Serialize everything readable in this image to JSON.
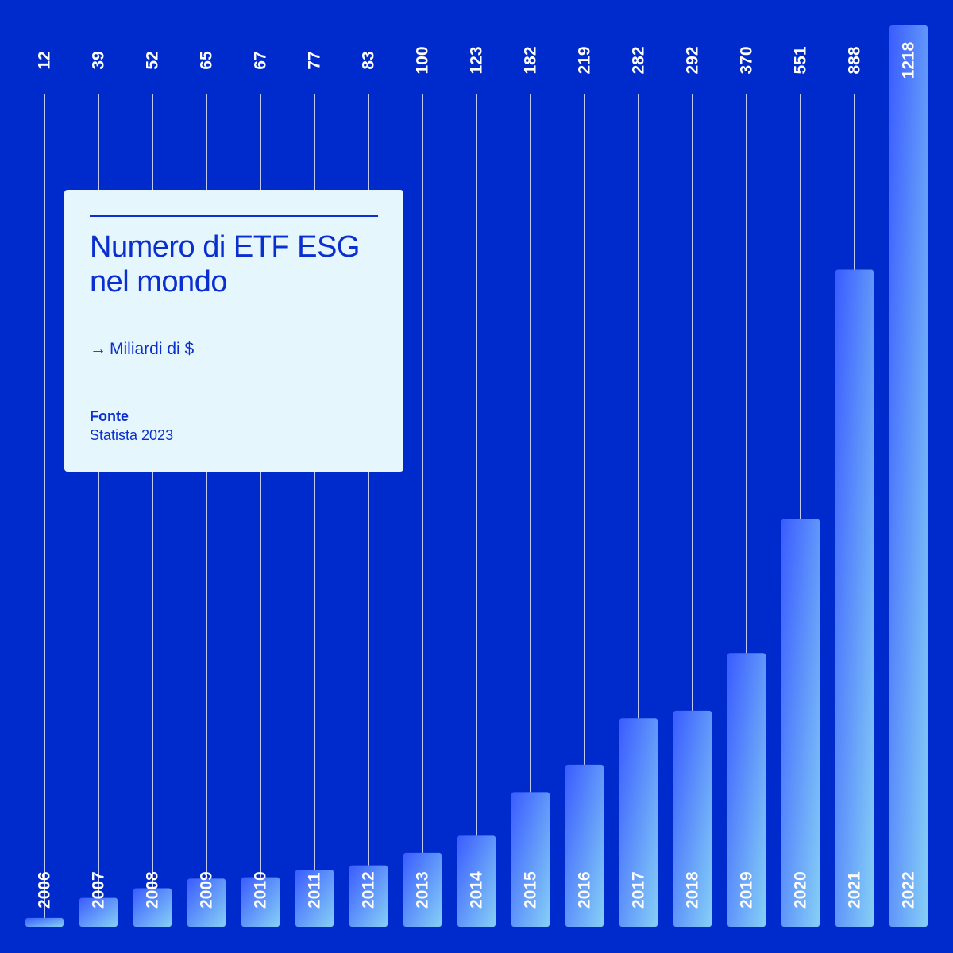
{
  "card": {
    "title": "Numero di ETF ESG nel mondo",
    "unit_arrow": "→",
    "unit": "Miliardi di $",
    "source_label": "Fonte",
    "source": "Statista 2023"
  },
  "colors": {
    "background": "#002bcc",
    "bar_top": "#3a5cff",
    "bar_bottom": "#86cff6",
    "card": "#e6f6fd",
    "card_text": "#0a2fd0"
  },
  "chart_data": {
    "type": "bar",
    "title": "Numero di ETF ESG nel mondo",
    "ylabel": "Miliardi di $",
    "categories": [
      "2006",
      "2007",
      "2008",
      "2009",
      "2010",
      "2011",
      "2012",
      "2013",
      "2014",
      "2015",
      "2016",
      "2017",
      "2018",
      "2019",
      "2020",
      "2021",
      "2022"
    ],
    "values": [
      12,
      39,
      52,
      65,
      67,
      77,
      83,
      100,
      123,
      182,
      219,
      282,
      292,
      370,
      551,
      888,
      1218
    ],
    "ylim": [
      0,
      1218
    ],
    "grid": false,
    "data_labels": "top, rotated",
    "category_labels": "inside bar bottom, rotated"
  }
}
